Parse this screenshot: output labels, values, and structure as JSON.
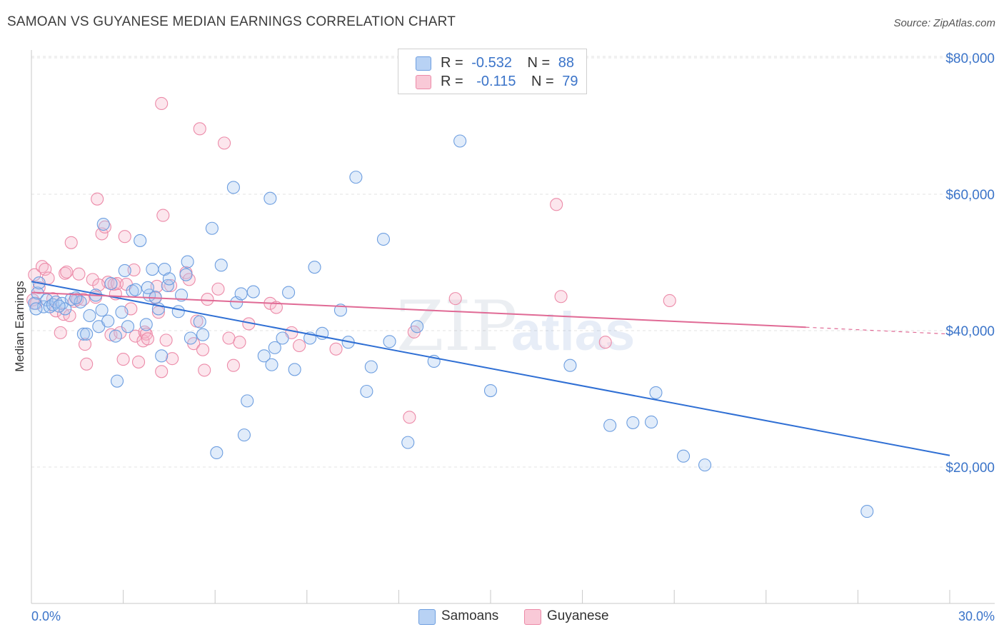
{
  "title": "SAMOAN VS GUYANESE MEDIAN EARNINGS CORRELATION CHART",
  "source": "Source: ZipAtlas.com",
  "legend": {
    "samoans": {
      "r_label": "R =",
      "r_value": "-0.532",
      "n_label": "N =",
      "n_value": "88"
    },
    "guyanese": {
      "r_label": "R =",
      "r_value": "-0.115",
      "n_label": "N =",
      "n_value": "79"
    }
  },
  "bottom_legend": {
    "samoans": "Samoans",
    "guyanese": "Guyanese"
  },
  "watermark": {
    "zip": "ZIP",
    "atlas": "atlas"
  },
  "colors": {
    "samoans_fill": "#aac8f0",
    "samoans_stroke": "#6d9ee0",
    "samoans_line": "#2f6fd4",
    "guyanese_fill": "#f7b8cb",
    "guyanese_stroke": "#ec8aa8",
    "guyanese_line": "#e06a95",
    "axis_text": "#3b74c9"
  },
  "chart_data": {
    "type": "scatter",
    "title": "SAMOAN VS GUYANESE MEDIAN EARNINGS CORRELATION CHART",
    "xlabel": "",
    "ylabel": "Median Earnings",
    "xlim": [
      0,
      30
    ],
    "ylim": [
      0,
      82000
    ],
    "x_tick_labels": [
      "0.0%",
      "30.0%"
    ],
    "y_ticks": [
      20000,
      40000,
      60000,
      80000
    ],
    "y_tick_labels": [
      "$20,000",
      "$40,000",
      "$60,000",
      "$80,000"
    ],
    "grid": true,
    "series": [
      {
        "name": "Samoans",
        "trend": {
          "x": [
            0,
            30
          ],
          "y": [
            47200,
            21700
          ]
        },
        "points": [
          [
            0.1,
            44000
          ],
          [
            0.2,
            45500
          ],
          [
            0.25,
            47000
          ],
          [
            0.4,
            43500
          ],
          [
            0.5,
            44500
          ],
          [
            0.6,
            43500
          ],
          [
            0.7,
            43800
          ],
          [
            0.8,
            44200
          ],
          [
            1.0,
            44000
          ],
          [
            1.1,
            43200
          ],
          [
            1.3,
            44600
          ],
          [
            1.6,
            44200
          ],
          [
            1.7,
            39500
          ],
          [
            1.8,
            39500
          ],
          [
            1.9,
            42200
          ],
          [
            2.1,
            45200
          ],
          [
            2.2,
            40600
          ],
          [
            2.3,
            43000
          ],
          [
            2.35,
            55600
          ],
          [
            2.5,
            41400
          ],
          [
            2.6,
            46900
          ],
          [
            2.75,
            39200
          ],
          [
            2.8,
            32600
          ],
          [
            2.95,
            42700
          ],
          [
            3.05,
            48800
          ],
          [
            3.15,
            40600
          ],
          [
            3.3,
            45800
          ],
          [
            3.4,
            46000
          ],
          [
            3.55,
            53200
          ],
          [
            3.75,
            40900
          ],
          [
            3.85,
            45200
          ],
          [
            3.95,
            49000
          ],
          [
            4.05,
            44900
          ],
          [
            4.15,
            43200
          ],
          [
            4.25,
            36300
          ],
          [
            4.35,
            49000
          ],
          [
            4.45,
            46600
          ],
          [
            4.5,
            47600
          ],
          [
            4.8,
            42800
          ],
          [
            4.9,
            45200
          ],
          [
            5.05,
            48200
          ],
          [
            5.1,
            50100
          ],
          [
            5.2,
            38900
          ],
          [
            5.5,
            41300
          ],
          [
            5.6,
            39400
          ],
          [
            5.9,
            55000
          ],
          [
            6.05,
            22100
          ],
          [
            6.2,
            49600
          ],
          [
            6.6,
            61000
          ],
          [
            6.7,
            44100
          ],
          [
            6.85,
            45400
          ],
          [
            6.95,
            24700
          ],
          [
            7.05,
            29700
          ],
          [
            7.25,
            45700
          ],
          [
            7.6,
            36300
          ],
          [
            7.8,
            59400
          ],
          [
            7.85,
            35000
          ],
          [
            7.95,
            37500
          ],
          [
            8.2,
            38900
          ],
          [
            8.4,
            45600
          ],
          [
            8.6,
            34300
          ],
          [
            9.1,
            38900
          ],
          [
            9.25,
            49300
          ],
          [
            9.5,
            39600
          ],
          [
            10.1,
            43000
          ],
          [
            10.35,
            38300
          ],
          [
            10.6,
            62500
          ],
          [
            10.95,
            31100
          ],
          [
            11.1,
            34700
          ],
          [
            11.5,
            53400
          ],
          [
            11.7,
            38400
          ],
          [
            12.3,
            23600
          ],
          [
            12.6,
            40600
          ],
          [
            13.15,
            35500
          ],
          [
            14.0,
            67800
          ],
          [
            15.0,
            31200
          ],
          [
            17.6,
            34900
          ],
          [
            18.9,
            26100
          ],
          [
            19.65,
            26500
          ],
          [
            20.25,
            26600
          ],
          [
            20.4,
            30900
          ],
          [
            21.3,
            21600
          ],
          [
            22.0,
            20300
          ],
          [
            27.3,
            13500
          ],
          [
            0.15,
            43200
          ],
          [
            0.9,
            43600
          ],
          [
            1.45,
            44800
          ],
          [
            3.8,
            46300
          ]
        ]
      },
      {
        "name": "Guyanese",
        "trend": {
          "x": [
            0,
            25.3,
            30
          ],
          "y": [
            45600,
            40500,
            39500
          ]
        },
        "points": [
          [
            0.05,
            44500
          ],
          [
            0.1,
            48200
          ],
          [
            0.15,
            44000
          ],
          [
            0.25,
            46300
          ],
          [
            0.35,
            49400
          ],
          [
            0.45,
            49000
          ],
          [
            0.55,
            47700
          ],
          [
            0.7,
            44700
          ],
          [
            0.8,
            42900
          ],
          [
            0.95,
            39700
          ],
          [
            1.05,
            42400
          ],
          [
            1.1,
            48400
          ],
          [
            1.15,
            48600
          ],
          [
            1.3,
            52900
          ],
          [
            1.4,
            44300
          ],
          [
            1.5,
            44600
          ],
          [
            1.55,
            48300
          ],
          [
            1.7,
            44600
          ],
          [
            1.75,
            38000
          ],
          [
            1.8,
            35100
          ],
          [
            2.0,
            47500
          ],
          [
            2.1,
            44900
          ],
          [
            2.15,
            59300
          ],
          [
            2.3,
            54200
          ],
          [
            2.4,
            55200
          ],
          [
            2.5,
            47100
          ],
          [
            2.6,
            39400
          ],
          [
            2.7,
            46800
          ],
          [
            2.75,
            45400
          ],
          [
            2.8,
            46900
          ],
          [
            2.9,
            39700
          ],
          [
            3.0,
            35800
          ],
          [
            3.05,
            53800
          ],
          [
            3.1,
            46800
          ],
          [
            3.25,
            43200
          ],
          [
            3.35,
            48900
          ],
          [
            3.4,
            39200
          ],
          [
            3.5,
            35400
          ],
          [
            3.65,
            38500
          ],
          [
            3.7,
            39800
          ],
          [
            3.75,
            39500
          ],
          [
            3.8,
            38800
          ],
          [
            4.05,
            44800
          ],
          [
            4.1,
            46500
          ],
          [
            4.15,
            42700
          ],
          [
            4.25,
            34000
          ],
          [
            4.3,
            56900
          ],
          [
            4.4,
            38600
          ],
          [
            4.55,
            46600
          ],
          [
            4.6,
            35900
          ],
          [
            4.25,
            73300
          ],
          [
            5.05,
            48500
          ],
          [
            5.15,
            47500
          ],
          [
            5.3,
            38100
          ],
          [
            5.4,
            41400
          ],
          [
            5.6,
            37200
          ],
          [
            5.65,
            34200
          ],
          [
            5.75,
            44600
          ],
          [
            5.5,
            69600
          ],
          [
            6.1,
            46100
          ],
          [
            6.3,
            67500
          ],
          [
            6.45,
            38900
          ],
          [
            6.6,
            34900
          ],
          [
            6.8,
            38300
          ],
          [
            7.1,
            41000
          ],
          [
            7.8,
            44000
          ],
          [
            8.0,
            43400
          ],
          [
            8.5,
            39700
          ],
          [
            8.75,
            37800
          ],
          [
            9.95,
            37300
          ],
          [
            12.35,
            27300
          ],
          [
            12.5,
            39800
          ],
          [
            13.85,
            44700
          ],
          [
            17.15,
            58500
          ],
          [
            17.3,
            45000
          ],
          [
            18.75,
            38300
          ],
          [
            20.85,
            44400
          ],
          [
            1.25,
            42200
          ],
          [
            2.2,
            46700
          ]
        ]
      }
    ]
  }
}
